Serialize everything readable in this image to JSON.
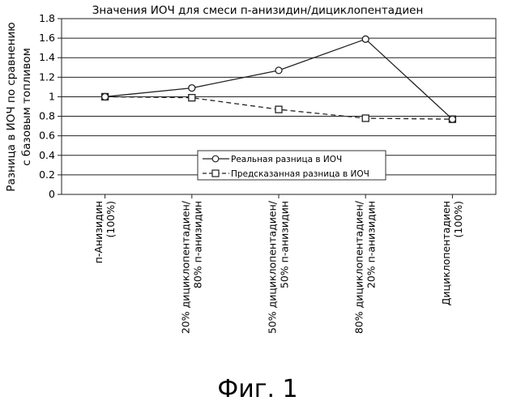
{
  "chart_data": {
    "type": "line",
    "title": "Значения ИОЧ для смеси п-анизидин/дициклопентадиен",
    "ylabel_lines": [
      "Разница в ИОЧ по сравнению",
      "с базовым топливом"
    ],
    "xlabel": "",
    "categories": [
      [
        "п-Анизидин",
        "(100%)"
      ],
      [
        "20% дициклопентадиен/",
        "80% п-анизидин"
      ],
      [
        "50% дициклопентадиен/",
        "50% п-анизидин"
      ],
      [
        "80% дициклопентадиен/",
        "20% п-анизидин"
      ],
      [
        "Дициклопентадиен",
        "(100%)"
      ]
    ],
    "ylim": [
      0,
      1.8
    ],
    "yticks": [
      "0",
      "0.2",
      "0.4",
      "0.6",
      "0.8",
      "1",
      "1.2",
      "1.4",
      "1.6",
      "1.8"
    ],
    "grid": true,
    "legend_position": "center-right",
    "series": [
      {
        "name": "Реальная разница в ИОЧ",
        "marker": "circle",
        "dash": "solid",
        "values": [
          1.0,
          1.09,
          1.27,
          1.59,
          0.77
        ]
      },
      {
        "name": "Предсказанная разница в ИОЧ",
        "marker": "square",
        "dash": "dashed",
        "values": [
          1.0,
          0.99,
          0.87,
          0.78,
          0.77
        ]
      }
    ]
  },
  "caption": "Фиг. 1"
}
